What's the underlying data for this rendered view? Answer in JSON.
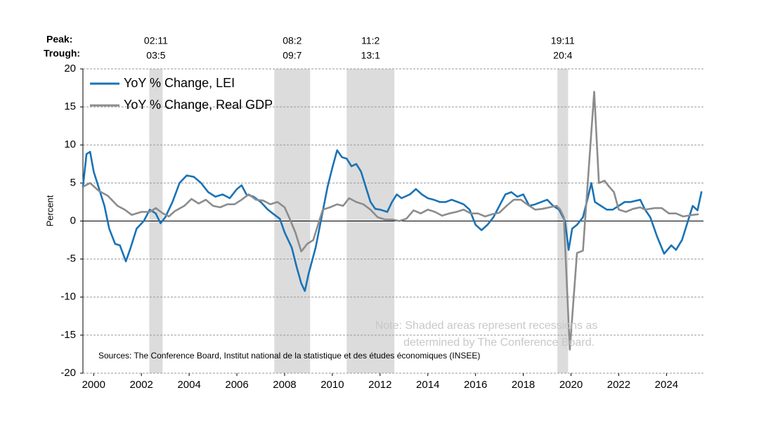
{
  "chart_data": {
    "type": "line",
    "y_label": "Percent",
    "peak_label": "Peak:",
    "trough_label": "Trough:",
    "note": [
      "Note: Shaded areas represent recessions as",
      "determined by The Conference Board."
    ],
    "sources": "Sources: The Conference Board, Institut national de la statistique et des études économiques (INSEE)",
    "xlim": [
      1999.55,
      2025.55
    ],
    "xticks": [
      2000,
      2002,
      2004,
      2006,
      2008,
      2010,
      2012,
      2014,
      2016,
      2018,
      2020,
      2022,
      2024
    ],
    "ylim": [
      -20,
      20
    ],
    "yticks": [
      -20,
      -15,
      -10,
      -5,
      0,
      5,
      10,
      15,
      20
    ],
    "grid": true,
    "legend": "top-left",
    "recessions": [
      {
        "start": 2002.33,
        "end": 2002.89,
        "peak": "02:11",
        "trough": "03:5"
      },
      {
        "start": 2007.57,
        "end": 2009.07,
        "peak": "08:2",
        "trough": "09:7"
      },
      {
        "start": 2010.6,
        "end": 2012.6,
        "peak": "11:2",
        "trough": "13:1"
      },
      {
        "start": 2019.43,
        "end": 2019.88,
        "peak": "19:11",
        "trough": "20:4"
      }
    ],
    "recession_color": "#dcdcdc",
    "series": [
      {
        "name": "YoY % Change, LEI",
        "color": "#1a73b5",
        "x": [
          1999.55,
          1999.7,
          1999.85,
          2000.0,
          2000.2,
          2000.45,
          2000.65,
          2000.9,
          2001.1,
          2001.35,
          2001.55,
          2001.8,
          2002.1,
          2002.35,
          2002.6,
          2002.8,
          2003.0,
          2003.3,
          2003.6,
          2003.9,
          2004.2,
          2004.5,
          2004.8,
          2005.1,
          2005.4,
          2005.7,
          2006.0,
          2006.2,
          2006.4,
          2006.7,
          2007.0,
          2007.3,
          2007.5,
          2007.8,
          2008.0,
          2008.3,
          2008.5,
          2008.7,
          2008.85,
          2009.0,
          2009.3,
          2009.55,
          2009.8,
          2010.0,
          2010.2,
          2010.4,
          2010.6,
          2010.8,
          2011.0,
          2011.2,
          2011.4,
          2011.6,
          2011.8,
          2012.0,
          2012.3,
          2012.5,
          2012.7,
          2012.9,
          2013.25,
          2013.5,
          2013.75,
          2014.0,
          2014.25,
          2014.5,
          2014.75,
          2015.0,
          2015.25,
          2015.5,
          2015.75,
          2016.0,
          2016.25,
          2016.5,
          2016.75,
          2017.0,
          2017.25,
          2017.5,
          2017.75,
          2018.0,
          2018.25,
          2018.5,
          2018.75,
          2019.0,
          2019.25,
          2019.5,
          2019.75,
          2019.9,
          2020.05,
          2020.25,
          2020.5,
          2020.7,
          2020.85,
          2021.0,
          2021.25,
          2021.5,
          2021.75,
          2022.0,
          2022.25,
          2022.5,
          2022.9,
          2023.1,
          2023.32,
          2023.6,
          2023.9,
          2024.2,
          2024.4,
          2024.65,
          2024.9,
          2025.1,
          2025.3,
          2025.47
        ],
        "values": [
          4.5,
          8.8,
          9.1,
          6.5,
          4.5,
          2,
          -1,
          -3,
          -3.2,
          -5.3,
          -3.5,
          -1,
          0,
          1.5,
          1.0,
          -0.3,
          0.5,
          2.5,
          5,
          6,
          5.8,
          5,
          3.8,
          3.2,
          3.5,
          3,
          4.2,
          4.7,
          3.5,
          3.2,
          2.5,
          1.5,
          1.0,
          0.3,
          -1.5,
          -3.5,
          -6,
          -8.2,
          -9.2,
          -7,
          -3.5,
          0.5,
          4.5,
          7,
          9.3,
          8.4,
          8.2,
          7.2,
          7.5,
          6.5,
          4.5,
          2.5,
          1.6,
          1.5,
          1.2,
          2.5,
          3.5,
          3.0,
          3.5,
          4.2,
          3.5,
          3,
          2.8,
          2.5,
          2.5,
          2.8,
          2.5,
          2.2,
          1.5,
          -0.5,
          -1.2,
          -0.5,
          0.5,
          2,
          3.5,
          3.8,
          3.2,
          3.5,
          2,
          2.2,
          2.5,
          2.8,
          2.0,
          1.5,
          0,
          -3.8,
          -1,
          -0.5,
          0.5,
          3,
          5,
          2.5,
          2,
          1.5,
          1.5,
          2,
          2.5,
          2.5,
          2.8,
          1.5,
          0.5,
          -2,
          -4.3,
          -3.2,
          -3.8,
          -2.5,
          0,
          2,
          1.4,
          3.9
        ]
      },
      {
        "name": "YoY % Change, Real GDP",
        "color": "#8c8c8c",
        "x": [
          1999.55,
          1999.85,
          2000.2,
          2000.6,
          2001.0,
          2001.3,
          2001.6,
          2002.0,
          2002.35,
          2002.6,
          2002.9,
          2003.15,
          2003.4,
          2003.8,
          2004.1,
          2004.4,
          2004.7,
          2005.0,
          2005.3,
          2005.6,
          2005.9,
          2006.2,
          2006.5,
          2006.8,
          2007.1,
          2007.4,
          2007.7,
          2008.0,
          2008.2,
          2008.45,
          2008.7,
          2008.95,
          2009.2,
          2009.6,
          2009.9,
          2010.2,
          2010.45,
          2010.7,
          2011.0,
          2011.3,
          2011.6,
          2011.9,
          2012.2,
          2012.5,
          2012.8,
          2013.1,
          2013.4,
          2013.7,
          2014.0,
          2014.3,
          2014.6,
          2014.9,
          2015.2,
          2015.5,
          2015.8,
          2016.1,
          2016.4,
          2016.7,
          2017.0,
          2017.3,
          2017.6,
          2017.9,
          2018.2,
          2018.5,
          2018.8,
          2019.1,
          2019.4,
          2019.55,
          2019.7,
          2019.95,
          2020.25,
          2020.5,
          2020.97,
          2021.17,
          2021.4,
          2021.6,
          2021.8,
          2022.0,
          2022.3,
          2022.6,
          2022.9,
          2023.1,
          2023.5,
          2023.8,
          2024.1,
          2024.4,
          2024.7,
          2024.9,
          2025.1,
          2025.35
        ],
        "values": [
          4.5,
          5.0,
          4.0,
          3.3,
          2.0,
          1.5,
          0.8,
          1.2,
          1.2,
          1.7,
          1.0,
          0.6,
          1.3,
          2.0,
          2.9,
          2.3,
          2.8,
          2.0,
          1.8,
          2.2,
          2.2,
          2.8,
          3.5,
          2.8,
          2.7,
          2.2,
          2.5,
          1.8,
          0.4,
          -1.5,
          -4.0,
          -3.0,
          -2.5,
          1.5,
          1.8,
          2.2,
          2.0,
          3.0,
          2.5,
          2.2,
          1.5,
          0.5,
          0.2,
          0.2,
          0.0,
          0.3,
          1.4,
          1.0,
          1.5,
          1.2,
          0.7,
          1.0,
          1.2,
          1.5,
          1.0,
          1.0,
          0.6,
          0.9,
          1.1,
          2.0,
          2.8,
          2.8,
          2.1,
          1.5,
          1.6,
          1.8,
          2.0,
          1.5,
          0.5,
          -16.9,
          -4.2,
          -3.9,
          17,
          5.0,
          5.3,
          4.5,
          3.8,
          1.5,
          1.2,
          1.6,
          1.8,
          1.5,
          1.7,
          1.7,
          1.0,
          1.0,
          0.6,
          0.7,
          0.8,
          0.9
        ]
      }
    ]
  }
}
